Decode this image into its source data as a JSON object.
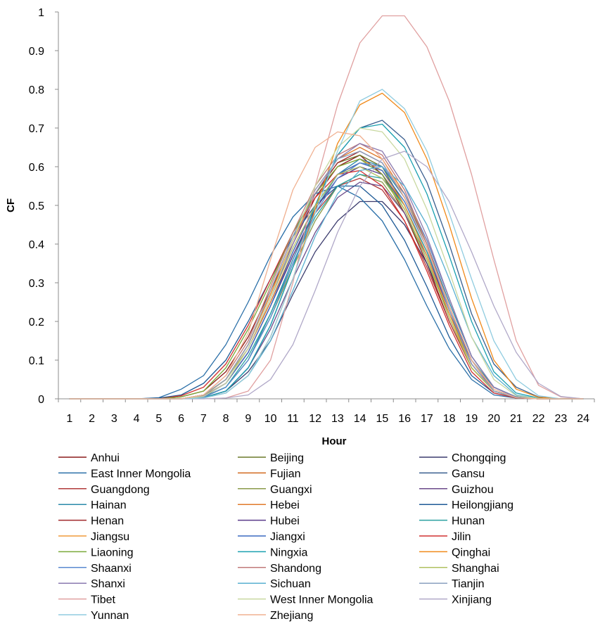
{
  "chart_data": {
    "type": "line",
    "title": "",
    "xlabel": "Hour",
    "ylabel": "CF",
    "x": [
      1,
      2,
      3,
      4,
      5,
      6,
      7,
      8,
      9,
      10,
      11,
      12,
      13,
      14,
      15,
      16,
      17,
      18,
      19,
      20,
      21,
      22,
      23,
      24
    ],
    "x_ticks": [
      "1",
      "2",
      "3",
      "4",
      "5",
      "6",
      "7",
      "8",
      "9",
      "10",
      "11",
      "12",
      "13",
      "14",
      "15",
      "16",
      "17",
      "18",
      "19",
      "20",
      "21",
      "22",
      "23",
      "24"
    ],
    "ylim": [
      0,
      1
    ],
    "y_ticks": [
      "0",
      "0.1",
      "0.2",
      "0.3",
      "0.4",
      "0.5",
      "0.6",
      "0.7",
      "0.8",
      "0.9",
      "1"
    ],
    "grid": false,
    "legend_position": "bottom",
    "series": [
      {
        "name": "Anhui",
        "color": "#8b1a1a",
        "values": [
          0,
          0,
          0,
          0,
          0,
          0.005,
          0.02,
          0.07,
          0.16,
          0.28,
          0.4,
          0.52,
          0.6,
          0.63,
          0.58,
          0.48,
          0.35,
          0.2,
          0.08,
          0.02,
          0.003,
          0,
          0,
          0
        ]
      },
      {
        "name": "Beijing",
        "color": "#6b7a2a",
        "values": [
          0,
          0,
          0,
          0,
          0,
          0,
          0.01,
          0.05,
          0.14,
          0.27,
          0.41,
          0.53,
          0.61,
          0.63,
          0.6,
          0.5,
          0.37,
          0.22,
          0.09,
          0.02,
          0.003,
          0,
          0,
          0
        ]
      },
      {
        "name": "Chongqing",
        "color": "#3c3c6e",
        "values": [
          0,
          0,
          0,
          0,
          0,
          0,
          0.003,
          0.02,
          0.07,
          0.15,
          0.27,
          0.38,
          0.46,
          0.51,
          0.51,
          0.45,
          0.35,
          0.22,
          0.1,
          0.03,
          0.005,
          0,
          0,
          0
        ]
      },
      {
        "name": "East Inner Mongolia",
        "color": "#2a6fa8",
        "values": [
          0,
          0,
          0,
          0,
          0.003,
          0.025,
          0.06,
          0.14,
          0.25,
          0.37,
          0.47,
          0.53,
          0.55,
          0.52,
          0.46,
          0.36,
          0.24,
          0.13,
          0.05,
          0.01,
          0.002,
          0,
          0,
          0
        ]
      },
      {
        "name": "Fujian",
        "color": "#d2691e",
        "values": [
          0,
          0,
          0,
          0,
          0,
          0,
          0.01,
          0.05,
          0.13,
          0.25,
          0.38,
          0.5,
          0.58,
          0.61,
          0.6,
          0.53,
          0.41,
          0.26,
          0.11,
          0.03,
          0.004,
          0,
          0,
          0
        ]
      },
      {
        "name": "Gansu",
        "color": "#3a5f8f",
        "values": [
          0,
          0,
          0,
          0,
          0,
          0,
          0.003,
          0.02,
          0.08,
          0.19,
          0.34,
          0.5,
          0.63,
          0.7,
          0.72,
          0.67,
          0.56,
          0.4,
          0.22,
          0.09,
          0.03,
          0.005,
          0,
          0
        ]
      },
      {
        "name": "Guangdong",
        "color": "#b03a3a",
        "values": [
          0,
          0,
          0,
          0,
          0,
          0,
          0.008,
          0.04,
          0.12,
          0.24,
          0.37,
          0.48,
          0.55,
          0.57,
          0.54,
          0.46,
          0.34,
          0.2,
          0.08,
          0.02,
          0.003,
          0,
          0,
          0
        ]
      },
      {
        "name": "Guangxi",
        "color": "#8a9a4a",
        "values": [
          0,
          0,
          0,
          0,
          0,
          0,
          0.006,
          0.03,
          0.1,
          0.21,
          0.34,
          0.46,
          0.55,
          0.58,
          0.56,
          0.48,
          0.36,
          0.22,
          0.09,
          0.02,
          0.003,
          0,
          0,
          0
        ]
      },
      {
        "name": "Guizhou",
        "color": "#6b4a8a",
        "values": [
          0,
          0,
          0,
          0,
          0,
          0,
          0.003,
          0.02,
          0.08,
          0.18,
          0.31,
          0.43,
          0.52,
          0.56,
          0.55,
          0.48,
          0.37,
          0.23,
          0.1,
          0.03,
          0.004,
          0,
          0,
          0
        ]
      },
      {
        "name": "Hainan",
        "color": "#2a8aaa",
        "values": [
          0,
          0,
          0,
          0,
          0,
          0,
          0.004,
          0.03,
          0.1,
          0.22,
          0.36,
          0.49,
          0.58,
          0.62,
          0.6,
          0.52,
          0.4,
          0.25,
          0.11,
          0.03,
          0.005,
          0,
          0,
          0
        ]
      },
      {
        "name": "Hebei",
        "color": "#e07a2a",
        "values": [
          0,
          0,
          0,
          0,
          0,
          0,
          0.01,
          0.05,
          0.14,
          0.28,
          0.42,
          0.54,
          0.62,
          0.65,
          0.62,
          0.53,
          0.4,
          0.24,
          0.1,
          0.02,
          0.003,
          0,
          0,
          0
        ]
      },
      {
        "name": "Heilongjiang",
        "color": "#1e5a96",
        "values": [
          0,
          0,
          0,
          0,
          0.002,
          0.01,
          0.04,
          0.1,
          0.2,
          0.31,
          0.42,
          0.5,
          0.55,
          0.55,
          0.5,
          0.41,
          0.29,
          0.16,
          0.06,
          0.015,
          0.002,
          0,
          0,
          0
        ]
      },
      {
        "name": "Henan",
        "color": "#a0282a",
        "values": [
          0,
          0,
          0,
          0,
          0,
          0,
          0.008,
          0.05,
          0.14,
          0.27,
          0.41,
          0.53,
          0.61,
          0.64,
          0.61,
          0.52,
          0.39,
          0.23,
          0.09,
          0.02,
          0.003,
          0,
          0,
          0
        ]
      },
      {
        "name": "Hubei",
        "color": "#5a3a8a",
        "values": [
          0,
          0,
          0,
          0,
          0,
          0,
          0.006,
          0.04,
          0.12,
          0.24,
          0.37,
          0.49,
          0.57,
          0.6,
          0.58,
          0.5,
          0.38,
          0.23,
          0.09,
          0.02,
          0.003,
          0,
          0,
          0
        ]
      },
      {
        "name": "Hunan",
        "color": "#2aa0a0",
        "values": [
          0,
          0,
          0,
          0,
          0,
          0,
          0.005,
          0.03,
          0.11,
          0.22,
          0.35,
          0.47,
          0.55,
          0.58,
          0.57,
          0.5,
          0.38,
          0.24,
          0.1,
          0.03,
          0.004,
          0,
          0,
          0
        ]
      },
      {
        "name": "Jiangsu",
        "color": "#f09a3a",
        "values": [
          0,
          0,
          0,
          0,
          0,
          0,
          0.008,
          0.05,
          0.14,
          0.27,
          0.41,
          0.53,
          0.6,
          0.62,
          0.59,
          0.5,
          0.37,
          0.22,
          0.08,
          0.02,
          0.003,
          0,
          0,
          0
        ]
      },
      {
        "name": "Jiangxi",
        "color": "#3a6ac0",
        "values": [
          0,
          0,
          0,
          0,
          0,
          0,
          0.005,
          0.04,
          0.12,
          0.24,
          0.38,
          0.5,
          0.58,
          0.61,
          0.59,
          0.51,
          0.39,
          0.24,
          0.1,
          0.02,
          0.003,
          0,
          0,
          0
        ]
      },
      {
        "name": "Jilin",
        "color": "#d03030",
        "values": [
          0,
          0,
          0,
          0,
          0,
          0.008,
          0.03,
          0.09,
          0.19,
          0.31,
          0.43,
          0.52,
          0.58,
          0.59,
          0.55,
          0.46,
          0.33,
          0.19,
          0.07,
          0.015,
          0.002,
          0,
          0,
          0
        ]
      },
      {
        "name": "Liaoning",
        "color": "#7aaa3a",
        "values": [
          0,
          0,
          0,
          0,
          0,
          0.005,
          0.02,
          0.08,
          0.18,
          0.3,
          0.43,
          0.53,
          0.6,
          0.62,
          0.58,
          0.49,
          0.36,
          0.21,
          0.08,
          0.02,
          0.003,
          0,
          0,
          0
        ]
      },
      {
        "name": "Ningxia",
        "color": "#1aa0b0",
        "values": [
          0,
          0,
          0,
          0,
          0,
          0,
          0.003,
          0.02,
          0.08,
          0.19,
          0.34,
          0.5,
          0.63,
          0.7,
          0.71,
          0.65,
          0.53,
          0.37,
          0.2,
          0.07,
          0.015,
          0.002,
          0,
          0
        ]
      },
      {
        "name": "Qinghai",
        "color": "#f08a1a",
        "values": [
          0,
          0,
          0,
          0,
          0,
          0,
          0.002,
          0.015,
          0.06,
          0.16,
          0.31,
          0.49,
          0.66,
          0.76,
          0.79,
          0.74,
          0.62,
          0.45,
          0.26,
          0.1,
          0.025,
          0.004,
          0,
          0
        ]
      },
      {
        "name": "Shaanxi",
        "color": "#5a8ad0",
        "values": [
          0,
          0,
          0,
          0,
          0,
          0,
          0.004,
          0.03,
          0.1,
          0.21,
          0.35,
          0.48,
          0.57,
          0.61,
          0.6,
          0.53,
          0.41,
          0.26,
          0.11,
          0.03,
          0.004,
          0,
          0,
          0
        ]
      },
      {
        "name": "Shandong",
        "color": "#c07a7a",
        "values": [
          0,
          0,
          0,
          0,
          0,
          0,
          0.01,
          0.06,
          0.15,
          0.29,
          0.43,
          0.55,
          0.63,
          0.66,
          0.63,
          0.54,
          0.4,
          0.24,
          0.1,
          0.02,
          0.003,
          0,
          0,
          0
        ]
      },
      {
        "name": "Shanghai",
        "color": "#b0c060",
        "values": [
          0,
          0,
          0,
          0,
          0,
          0,
          0.008,
          0.05,
          0.13,
          0.26,
          0.39,
          0.5,
          0.58,
          0.6,
          0.57,
          0.49,
          0.36,
          0.21,
          0.08,
          0.02,
          0.003,
          0,
          0,
          0
        ]
      },
      {
        "name": "Shanxi",
        "color": "#8a7ab0",
        "values": [
          0,
          0,
          0,
          0,
          0,
          0,
          0.007,
          0.04,
          0.13,
          0.26,
          0.4,
          0.53,
          0.62,
          0.66,
          0.64,
          0.55,
          0.42,
          0.26,
          0.11,
          0.03,
          0.004,
          0,
          0,
          0
        ]
      },
      {
        "name": "Sichuan",
        "color": "#5ab0d0",
        "values": [
          0,
          0,
          0,
          0,
          0,
          0,
          0.002,
          0.015,
          0.06,
          0.15,
          0.28,
          0.42,
          0.53,
          0.59,
          0.6,
          0.55,
          0.45,
          0.31,
          0.16,
          0.06,
          0.01,
          0.001,
          0,
          0
        ]
      },
      {
        "name": "Tianjin",
        "color": "#8aa0c0",
        "values": [
          0,
          0,
          0,
          0,
          0,
          0,
          0.01,
          0.05,
          0.14,
          0.28,
          0.42,
          0.54,
          0.62,
          0.64,
          0.61,
          0.52,
          0.39,
          0.23,
          0.09,
          0.02,
          0.003,
          0,
          0,
          0
        ]
      },
      {
        "name": "Tibet",
        "color": "#e0a0a0",
        "values": [
          0,
          0,
          0,
          0,
          0,
          0,
          0,
          0.002,
          0.02,
          0.1,
          0.3,
          0.55,
          0.76,
          0.92,
          0.99,
          0.99,
          0.91,
          0.77,
          0.58,
          0.36,
          0.15,
          0.035,
          0.005,
          0
        ]
      },
      {
        "name": "West Inner Mongolia",
        "color": "#c8d8a0",
        "values": [
          0,
          0,
          0,
          0,
          0,
          0,
          0.006,
          0.04,
          0.13,
          0.26,
          0.41,
          0.55,
          0.65,
          0.7,
          0.69,
          0.62,
          0.49,
          0.33,
          0.16,
          0.05,
          0.008,
          0.001,
          0,
          0
        ]
      },
      {
        "name": "Xinjiang",
        "color": "#b0a8c8",
        "values": [
          0,
          0,
          0,
          0,
          0,
          0,
          0,
          0.002,
          0.01,
          0.05,
          0.14,
          0.28,
          0.43,
          0.55,
          0.62,
          0.64,
          0.6,
          0.51,
          0.38,
          0.24,
          0.12,
          0.04,
          0.006,
          0
        ]
      },
      {
        "name": "Yunnan",
        "color": "#90cce0",
        "values": [
          0,
          0,
          0,
          0,
          0,
          0,
          0.002,
          0.015,
          0.06,
          0.16,
          0.31,
          0.48,
          0.64,
          0.77,
          0.8,
          0.75,
          0.64,
          0.48,
          0.31,
          0.15,
          0.05,
          0.008,
          0,
          0
        ]
      },
      {
        "name": "Zhejiang",
        "color": "#f0b090",
        "values": [
          0,
          0,
          0,
          0,
          0,
          0,
          0.01,
          0.06,
          0.17,
          0.36,
          0.54,
          0.65,
          0.69,
          0.68,
          0.62,
          0.52,
          0.39,
          0.24,
          0.1,
          0.025,
          0.003,
          0,
          0,
          0
        ]
      }
    ]
  }
}
